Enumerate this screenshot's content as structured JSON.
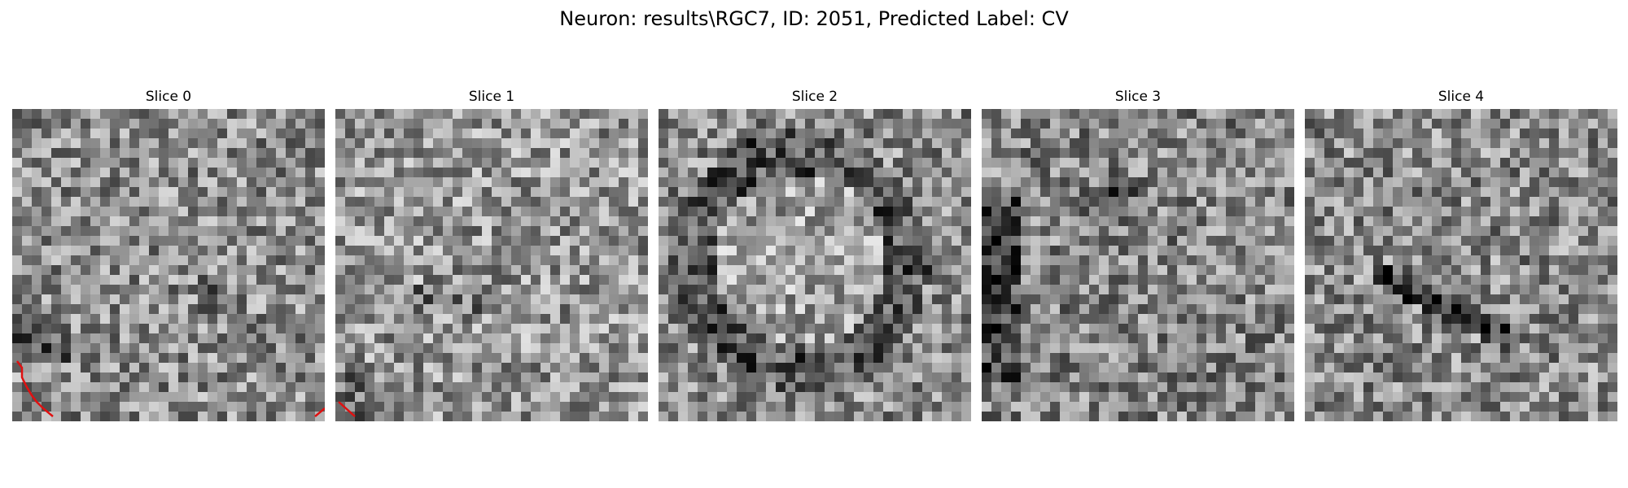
{
  "figure": {
    "title": "Neuron: results\\RGC7, ID: 2051, Predicted Label: CV"
  },
  "trace_color": "#e01010",
  "slices": [
    {
      "label": "Slice 0"
    },
    {
      "label": "Slice 1"
    },
    {
      "label": "Slice 2"
    },
    {
      "label": "Slice 3"
    },
    {
      "label": "Slice 4"
    }
  ]
}
